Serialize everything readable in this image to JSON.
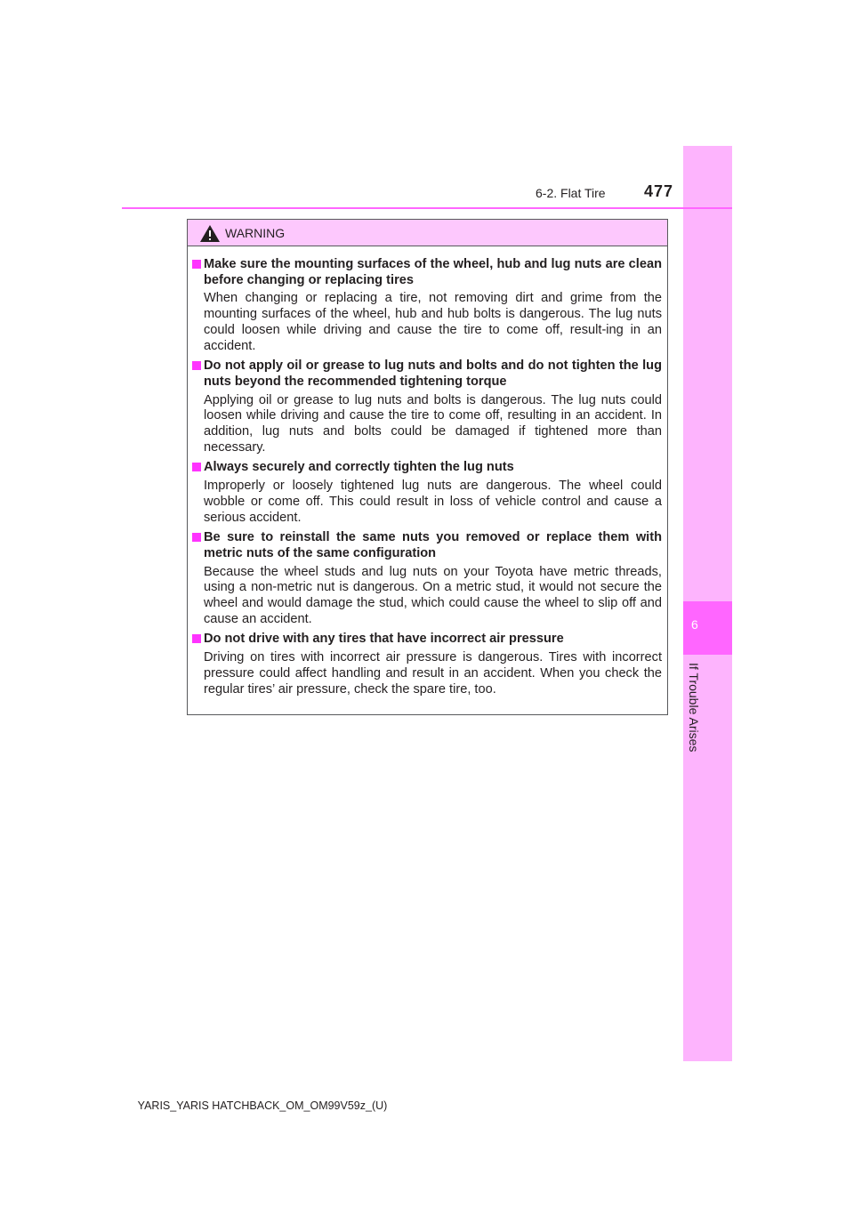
{
  "header": {
    "section": "6-2. Flat Tire",
    "page": "477"
  },
  "sidebar": {
    "chapter_number": "6",
    "chapter_title": "If Trouble Arises"
  },
  "warning": {
    "title": "WARNING",
    "items": [
      {
        "heading": "Make sure the mounting surfaces of the wheel, hub and lug nuts are clean before changing or replacing tires",
        "body": "When changing or replacing a tire, not removing dirt and grime from the mounting surfaces of the wheel, hub and hub bolts is dangerous. The lug nuts could loosen while driving and cause the tire to come off, result-ing in an accident."
      },
      {
        "heading": "Do not apply oil or grease to lug nuts and bolts and do not tighten the lug nuts beyond the recommended tightening torque",
        "body": "Applying oil or grease to lug nuts and bolts is dangerous. The lug nuts could loosen while driving and cause the tire to come off, resulting in an accident. In addition, lug nuts and bolts could be damaged if tightened more than necessary."
      },
      {
        "heading": "Always securely and correctly tighten the lug nuts",
        "body": "Improperly or loosely tightened lug nuts are dangerous. The wheel could wobble or come off. This could result in loss of vehicle control and cause a serious accident."
      },
      {
        "heading": "Be sure to reinstall the same nuts you removed or replace them with metric nuts of the same configuration",
        "body": "Because the wheel studs and lug nuts on your Toyota have metric threads, using a non-metric nut is dangerous. On a metric stud, it would not secure the wheel and would damage the stud, which could cause the wheel to slip off and cause an accident."
      },
      {
        "heading": "Do not drive with any tires that have incorrect air pressure",
        "body": "Driving on tires with incorrect air pressure is dangerous. Tires with incorrect pressure could affect handling and result in an accident. When you check the regular tires’ air pressure, check the spare tire, too."
      }
    ]
  },
  "footer": {
    "text": "YARIS_YARIS HATCHBACK_OM_OM99V59z_(U)"
  }
}
